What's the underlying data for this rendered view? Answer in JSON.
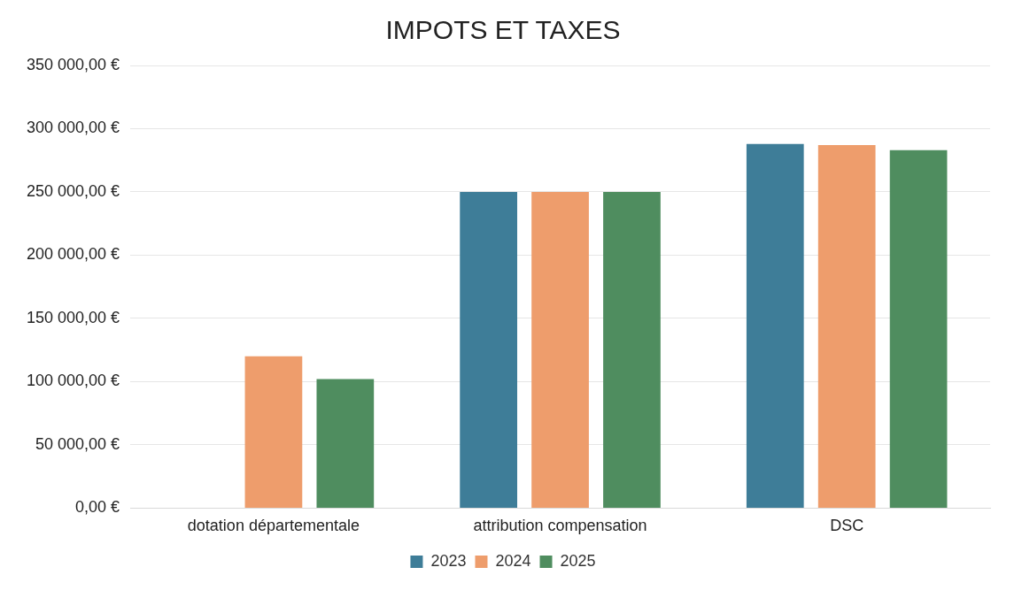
{
  "chart_data": {
    "type": "bar",
    "title": "IMPOTS ET TAXES",
    "categories": [
      "dotation départementale",
      "attribution compensation",
      "DSC"
    ],
    "series": [
      {
        "name": "2023",
        "color": "#3e7d98",
        "values": [
          null,
          250000,
          288000
        ]
      },
      {
        "name": "2024",
        "color": "#ee9d6c",
        "values": [
          120000,
          250000,
          287000
        ]
      },
      {
        "name": "2025",
        "color": "#4f8d5f",
        "values": [
          102000,
          250000,
          283000
        ]
      }
    ],
    "ylim": [
      0,
      350000
    ],
    "yticks": [
      {
        "value": 0,
        "label": "0,00 €"
      },
      {
        "value": 50000,
        "label": "50 000,00 €"
      },
      {
        "value": 100000,
        "label": "100 000,00 €"
      },
      {
        "value": 150000,
        "label": "150 000,00 €"
      },
      {
        "value": 200000,
        "label": "200 000,00 €"
      },
      {
        "value": 250000,
        "label": "250 000,00 €"
      },
      {
        "value": 300000,
        "label": "300 000,00 €"
      },
      {
        "value": 350000,
        "label": "350 000,00 €"
      }
    ],
    "grid": "y",
    "legend": "bottom"
  }
}
